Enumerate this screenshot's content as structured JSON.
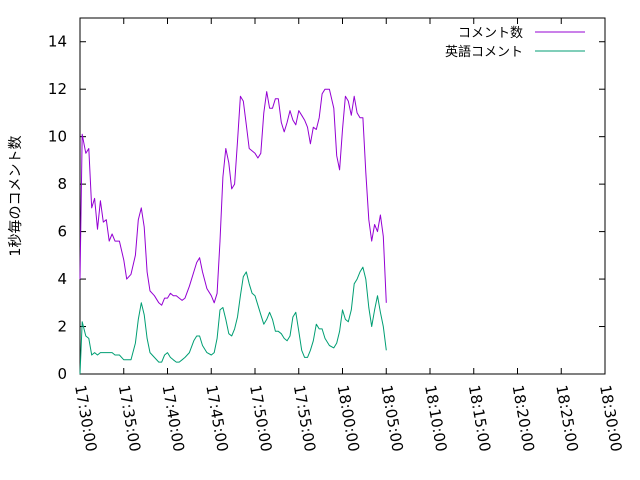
{
  "chart_data": {
    "type": "line",
    "title": "",
    "xlabel": "",
    "ylabel": "1秒毎のコメント数",
    "ylim": [
      0,
      15
    ],
    "xlim": [
      "17:30:00",
      "18:30:00"
    ],
    "xticks": [
      "17:30:00",
      "17:35:00",
      "17:40:00",
      "17:45:00",
      "17:50:00",
      "17:55:00",
      "18:00:00",
      "18:05:00",
      "18:10:00",
      "18:15:00",
      "18:20:00",
      "18:25:00",
      "18:30:00"
    ],
    "yticks": [
      0,
      2,
      4,
      6,
      8,
      10,
      12,
      14
    ],
    "grid": false,
    "legend_position": "top-right",
    "colors": {
      "comments": "#9400d3",
      "english_comments": "#009e73"
    },
    "series": [
      {
        "name": "コメント数",
        "points": [
          [
            "17:30:00",
            4.0
          ],
          [
            "17:30:15",
            10.1
          ],
          [
            "17:30:40",
            9.3
          ],
          [
            "17:31:00",
            9.5
          ],
          [
            "17:31:20",
            7.0
          ],
          [
            "17:31:40",
            7.4
          ],
          [
            "17:32:00",
            6.1
          ],
          [
            "17:32:20",
            7.3
          ],
          [
            "17:32:40",
            6.4
          ],
          [
            "17:33:00",
            6.5
          ],
          [
            "17:33:20",
            5.6
          ],
          [
            "17:33:40",
            5.9
          ],
          [
            "17:34:00",
            5.6
          ],
          [
            "17:34:30",
            5.6
          ],
          [
            "17:35:00",
            4.8
          ],
          [
            "17:35:20",
            4.0
          ],
          [
            "17:35:50",
            4.2
          ],
          [
            "17:36:20",
            5.0
          ],
          [
            "17:36:40",
            6.5
          ],
          [
            "17:37:00",
            7.0
          ],
          [
            "17:37:20",
            6.2
          ],
          [
            "17:37:40",
            4.3
          ],
          [
            "17:38:00",
            3.5
          ],
          [
            "17:38:30",
            3.3
          ],
          [
            "17:39:00",
            3.0
          ],
          [
            "17:39:20",
            2.9
          ],
          [
            "17:39:40",
            3.2
          ],
          [
            "17:40:00",
            3.2
          ],
          [
            "17:40:20",
            3.4
          ],
          [
            "17:40:40",
            3.3
          ],
          [
            "17:41:00",
            3.3
          ],
          [
            "17:41:20",
            3.2
          ],
          [
            "17:41:40",
            3.1
          ],
          [
            "17:42:00",
            3.2
          ],
          [
            "17:42:30",
            3.7
          ],
          [
            "17:43:00",
            4.3
          ],
          [
            "17:43:20",
            4.7
          ],
          [
            "17:43:40",
            4.9
          ],
          [
            "17:44:00",
            4.3
          ],
          [
            "17:44:30",
            3.6
          ],
          [
            "17:45:00",
            3.3
          ],
          [
            "17:45:20",
            3.0
          ],
          [
            "17:45:40",
            3.4
          ],
          [
            "17:46:00",
            5.6
          ],
          [
            "17:46:20",
            8.3
          ],
          [
            "17:46:40",
            9.5
          ],
          [
            "17:47:00",
            8.9
          ],
          [
            "17:47:20",
            7.8
          ],
          [
            "17:47:40",
            8.0
          ],
          [
            "17:48:00",
            9.8
          ],
          [
            "17:48:20",
            11.7
          ],
          [
            "17:48:40",
            11.5
          ],
          [
            "17:49:00",
            10.5
          ],
          [
            "17:49:20",
            9.5
          ],
          [
            "17:49:40",
            9.4
          ],
          [
            "17:50:00",
            9.3
          ],
          [
            "17:50:20",
            9.1
          ],
          [
            "17:50:40",
            9.3
          ],
          [
            "17:51:00",
            11.0
          ],
          [
            "17:51:20",
            11.9
          ],
          [
            "17:51:40",
            11.2
          ],
          [
            "17:52:00",
            11.2
          ],
          [
            "17:52:20",
            11.6
          ],
          [
            "17:52:40",
            11.6
          ],
          [
            "17:53:00",
            10.6
          ],
          [
            "17:53:20",
            10.2
          ],
          [
            "17:53:40",
            10.6
          ],
          [
            "17:54:00",
            11.1
          ],
          [
            "17:54:20",
            10.7
          ],
          [
            "17:54:40",
            10.5
          ],
          [
            "17:55:00",
            11.1
          ],
          [
            "17:55:20",
            10.9
          ],
          [
            "17:55:40",
            10.7
          ],
          [
            "17:56:00",
            10.4
          ],
          [
            "17:56:20",
            9.7
          ],
          [
            "17:56:40",
            10.4
          ],
          [
            "17:57:00",
            10.3
          ],
          [
            "17:57:20",
            10.8
          ],
          [
            "17:57:40",
            11.8
          ],
          [
            "17:58:00",
            12.0
          ],
          [
            "17:58:30",
            12.0
          ],
          [
            "17:59:00",
            11.2
          ],
          [
            "17:59:20",
            9.2
          ],
          [
            "17:59:40",
            8.6
          ],
          [
            "18:00:00",
            10.3
          ],
          [
            "18:00:20",
            11.7
          ],
          [
            "18:00:40",
            11.5
          ],
          [
            "18:01:00",
            10.9
          ],
          [
            "18:01:20",
            11.7
          ],
          [
            "18:01:40",
            11.0
          ],
          [
            "18:02:00",
            10.8
          ],
          [
            "18:02:20",
            10.8
          ],
          [
            "18:02:40",
            8.5
          ],
          [
            "18:03:00",
            6.5
          ],
          [
            "18:03:20",
            5.6
          ],
          [
            "18:03:40",
            6.3
          ],
          [
            "18:04:00",
            6.0
          ],
          [
            "18:04:20",
            6.7
          ],
          [
            "18:04:40",
            5.8
          ],
          [
            "18:05:00",
            3.0
          ]
        ]
      },
      {
        "name": "英語コメント",
        "points": [
          [
            "17:30:00",
            0.0
          ],
          [
            "17:30:15",
            2.2
          ],
          [
            "17:30:40",
            1.6
          ],
          [
            "17:31:00",
            1.5
          ],
          [
            "17:31:20",
            0.8
          ],
          [
            "17:31:40",
            0.9
          ],
          [
            "17:32:00",
            0.8
          ],
          [
            "17:32:20",
            0.9
          ],
          [
            "17:32:40",
            0.9
          ],
          [
            "17:33:00",
            0.9
          ],
          [
            "17:33:20",
            0.9
          ],
          [
            "17:33:40",
            0.9
          ],
          [
            "17:34:00",
            0.8
          ],
          [
            "17:34:30",
            0.8
          ],
          [
            "17:35:00",
            0.6
          ],
          [
            "17:35:20",
            0.6
          ],
          [
            "17:35:50",
            0.6
          ],
          [
            "17:36:20",
            1.3
          ],
          [
            "17:36:40",
            2.3
          ],
          [
            "17:37:00",
            3.0
          ],
          [
            "17:37:20",
            2.5
          ],
          [
            "17:37:40",
            1.5
          ],
          [
            "17:38:00",
            0.9
          ],
          [
            "17:38:30",
            0.7
          ],
          [
            "17:39:00",
            0.5
          ],
          [
            "17:39:20",
            0.5
          ],
          [
            "17:39:40",
            0.8
          ],
          [
            "17:40:00",
            0.9
          ],
          [
            "17:40:20",
            0.7
          ],
          [
            "17:40:40",
            0.6
          ],
          [
            "17:41:00",
            0.5
          ],
          [
            "17:41:20",
            0.5
          ],
          [
            "17:41:40",
            0.6
          ],
          [
            "17:42:00",
            0.7
          ],
          [
            "17:42:30",
            0.9
          ],
          [
            "17:43:00",
            1.4
          ],
          [
            "17:43:20",
            1.6
          ],
          [
            "17:43:40",
            1.6
          ],
          [
            "17:44:00",
            1.2
          ],
          [
            "17:44:30",
            0.9
          ],
          [
            "17:45:00",
            0.8
          ],
          [
            "17:45:20",
            0.9
          ],
          [
            "17:45:40",
            1.5
          ],
          [
            "17:46:00",
            2.7
          ],
          [
            "17:46:20",
            2.8
          ],
          [
            "17:46:40",
            2.3
          ],
          [
            "17:47:00",
            1.7
          ],
          [
            "17:47:20",
            1.6
          ],
          [
            "17:47:40",
            1.9
          ],
          [
            "17:48:00",
            2.4
          ],
          [
            "17:48:20",
            3.3
          ],
          [
            "17:48:40",
            4.1
          ],
          [
            "17:49:00",
            4.3
          ],
          [
            "17:49:20",
            3.8
          ],
          [
            "17:49:40",
            3.4
          ],
          [
            "17:50:00",
            3.3
          ],
          [
            "17:50:20",
            2.9
          ],
          [
            "17:50:40",
            2.5
          ],
          [
            "17:51:00",
            2.1
          ],
          [
            "17:51:20",
            2.3
          ],
          [
            "17:51:40",
            2.6
          ],
          [
            "17:52:00",
            2.3
          ],
          [
            "17:52:20",
            1.8
          ],
          [
            "17:52:40",
            1.8
          ],
          [
            "17:53:00",
            1.7
          ],
          [
            "17:53:20",
            1.5
          ],
          [
            "17:53:40",
            1.4
          ],
          [
            "17:54:00",
            1.6
          ],
          [
            "17:54:20",
            2.4
          ],
          [
            "17:54:40",
            2.6
          ],
          [
            "17:55:00",
            1.8
          ],
          [
            "17:55:20",
            1.0
          ],
          [
            "17:55:40",
            0.7
          ],
          [
            "17:56:00",
            0.7
          ],
          [
            "17:56:20",
            1.0
          ],
          [
            "17:56:40",
            1.4
          ],
          [
            "17:57:00",
            2.1
          ],
          [
            "17:57:20",
            1.9
          ],
          [
            "17:57:40",
            1.9
          ],
          [
            "17:58:00",
            1.5
          ],
          [
            "17:58:30",
            1.2
          ],
          [
            "17:59:00",
            1.1
          ],
          [
            "17:59:20",
            1.3
          ],
          [
            "17:59:40",
            1.8
          ],
          [
            "18:00:00",
            2.7
          ],
          [
            "18:00:20",
            2.3
          ],
          [
            "18:00:40",
            2.2
          ],
          [
            "18:01:00",
            2.7
          ],
          [
            "18:01:20",
            3.8
          ],
          [
            "18:01:40",
            4.0
          ],
          [
            "18:02:00",
            4.3
          ],
          [
            "18:02:20",
            4.5
          ],
          [
            "18:02:40",
            4.0
          ],
          [
            "18:03:00",
            2.8
          ],
          [
            "18:03:20",
            2.0
          ],
          [
            "18:03:40",
            2.7
          ],
          [
            "18:04:00",
            3.3
          ],
          [
            "18:04:20",
            2.6
          ],
          [
            "18:04:40",
            2.0
          ],
          [
            "18:05:00",
            1.0
          ]
        ]
      }
    ]
  }
}
